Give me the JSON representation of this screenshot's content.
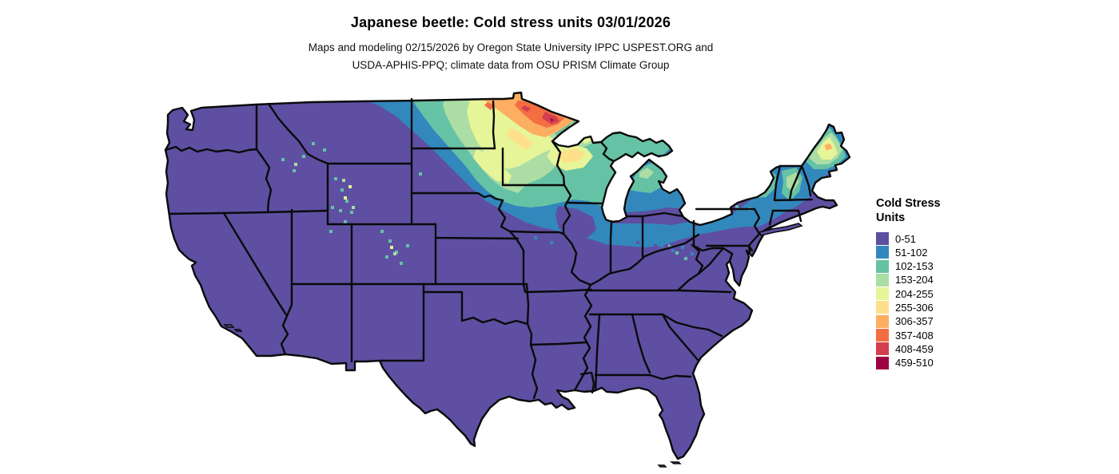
{
  "title": "Japanese beetle: Cold stress units 03/01/2026",
  "subtitle_line1": "Maps and modeling 02/15/2026 by Oregon State University IPPC USPEST.ORG and",
  "subtitle_line2": "USDA-APHIS-PPQ; climate data from OSU PRISM Climate Group",
  "legend": {
    "title_line1": "Cold Stress",
    "title_line2": "Units",
    "items": [
      {
        "label": "0-51",
        "color": "#5e4fa2"
      },
      {
        "label": "51-102",
        "color": "#3288bd"
      },
      {
        "label": "102-153",
        "color": "#66c2a5"
      },
      {
        "label": "153-204",
        "color": "#abdda4"
      },
      {
        "label": "204-255",
        "color": "#e6f598"
      },
      {
        "label": "255-306",
        "color": "#fee08b"
      },
      {
        "label": "306-357",
        "color": "#fdae61"
      },
      {
        "label": "357-408",
        "color": "#f46d43"
      },
      {
        "label": "408-459",
        "color": "#d53e4f"
      },
      {
        "label": "459-510",
        "color": "#9e0142"
      }
    ]
  },
  "map": {
    "region": "Contiguous United States",
    "state_border_color": "#0a0a0a",
    "background_color": "#ffffff",
    "base_land_color": "#5e4fa2",
    "hotspot_note": "highest cold stress (orange/red) in northern Minnesota and northeast North Dakota"
  }
}
